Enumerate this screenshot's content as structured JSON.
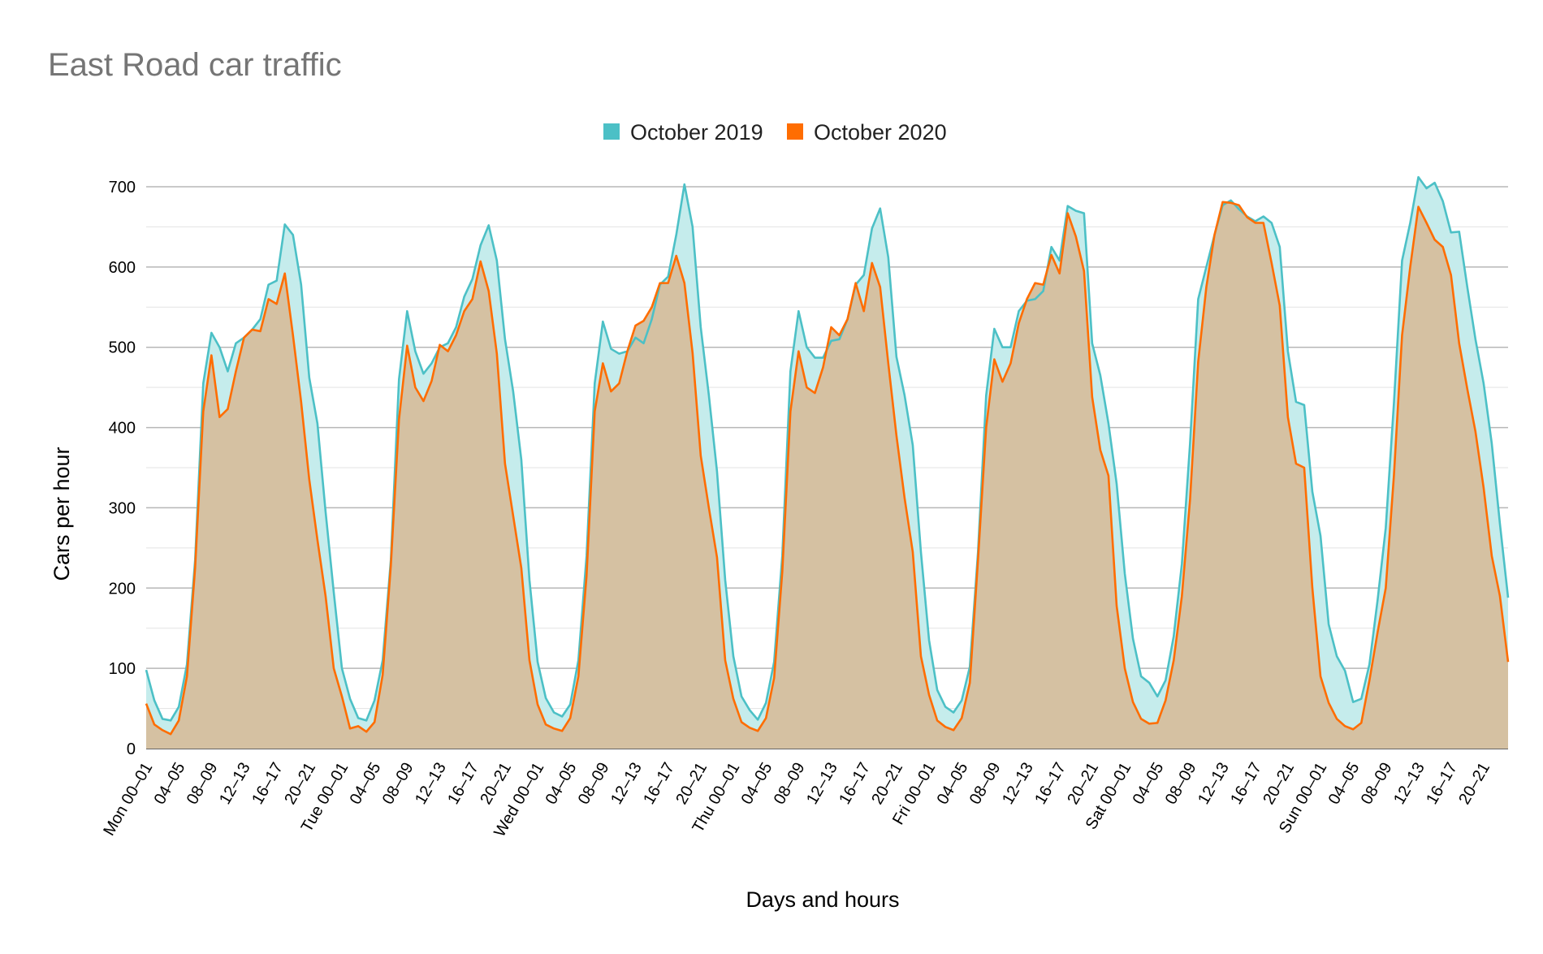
{
  "chart_data": {
    "type": "area",
    "title": "East Road car traffic",
    "xlabel": "Days and hours",
    "ylabel": "Cars per hour",
    "ylim": [
      0,
      700
    ],
    "y_ticks": [
      0,
      100,
      200,
      300,
      400,
      500,
      600,
      700
    ],
    "grid": true,
    "legend_position": "top",
    "x_tick_labels": [
      "Mon 00–01",
      "04–05",
      "08–09",
      "12–13",
      "16–17",
      "20–21",
      "Tue 00–01",
      "04–05",
      "08–09",
      "12–13",
      "16–17",
      "20–21",
      "Wed 00–01",
      "04–05",
      "08–09",
      "12–13",
      "16–17",
      "20–21",
      "Thu 00–01",
      "04–05",
      "08–09",
      "12–13",
      "16–17",
      "20–21",
      "Fri 00–01",
      "04–05",
      "08–09",
      "12–13",
      "16–17",
      "20–21",
      "Sat 00–01",
      "04–05",
      "08–09",
      "12–13",
      "16–17",
      "20–21",
      "Sun 00–01",
      "04–05",
      "08–09",
      "12–13",
      "16–17",
      "20–21"
    ],
    "series": [
      {
        "name": "October 2019",
        "color": "#4cc0c6",
        "fill": "#c5ecec",
        "values": [
          98,
          60,
          37,
          35,
          52,
          105,
          235,
          455,
          518,
          500,
          470,
          505,
          512,
          522,
          535,
          578,
          583,
          653,
          640,
          578,
          462,
          405,
          295,
          195,
          100,
          62,
          38,
          35,
          60,
          110,
          235,
          460,
          545,
          495,
          467,
          480,
          500,
          505,
          525,
          563,
          585,
          627,
          652,
          608,
          510,
          445,
          360,
          210,
          108,
          63,
          45,
          40,
          55,
          110,
          240,
          455,
          532,
          498,
          492,
          495,
          512,
          505,
          535,
          578,
          588,
          640,
          703,
          650,
          525,
          440,
          345,
          210,
          115,
          65,
          48,
          36,
          57,
          108,
          240,
          470,
          545,
          500,
          487,
          487,
          508,
          510,
          535,
          578,
          590,
          648,
          673,
          612,
          488,
          440,
          378,
          245,
          135,
          73,
          52,
          45,
          60,
          102,
          245,
          440,
          523,
          500,
          500,
          545,
          558,
          560,
          570,
          625,
          608,
          676,
          670,
          667,
          505,
          465,
          405,
          330,
          218,
          137,
          90,
          82,
          65,
          85,
          140,
          230,
          380,
          560,
          600,
          640,
          677,
          683,
          672,
          663,
          657,
          663,
          655,
          625,
          495,
          432,
          428,
          320,
          265,
          155,
          115,
          97,
          58,
          62,
          105,
          185,
          275,
          430,
          608,
          655,
          712,
          698,
          705,
          682,
          643,
          644,
          575,
          510,
          455,
          380,
          280,
          188
        ]
      },
      {
        "name": "October 2020",
        "color": "#ff6d01",
        "fill": "#d5c1a2",
        "values": [
          56,
          30,
          23,
          18,
          35,
          90,
          225,
          420,
          490,
          413,
          423,
          470,
          512,
          522,
          520,
          560,
          554,
          592,
          515,
          432,
          335,
          260,
          190,
          100,
          65,
          25,
          28,
          21,
          33,
          92,
          228,
          410,
          502,
          450,
          433,
          458,
          503,
          495,
          515,
          545,
          560,
          607,
          570,
          492,
          355,
          290,
          225,
          110,
          55,
          30,
          25,
          22,
          38,
          90,
          215,
          420,
          480,
          445,
          455,
          495,
          527,
          533,
          550,
          580,
          580,
          614,
          580,
          493,
          365,
          300,
          238,
          110,
          62,
          33,
          26,
          22,
          38,
          88,
          220,
          420,
          495,
          450,
          443,
          475,
          525,
          515,
          535,
          580,
          545,
          605,
          575,
          480,
          390,
          312,
          245,
          115,
          67,
          35,
          27,
          23,
          38,
          82,
          235,
          400,
          485,
          457,
          480,
          530,
          560,
          580,
          578,
          615,
          592,
          667,
          638,
          595,
          438,
          372,
          340,
          178,
          100,
          58,
          37,
          31,
          32,
          60,
          110,
          190,
          310,
          482,
          575,
          640,
          681,
          680,
          677,
          662,
          655,
          655,
          605,
          552,
          413,
          355,
          350,
          200,
          90,
          57,
          37,
          28,
          24,
          32,
          85,
          145,
          200,
          340,
          515,
          600,
          675,
          655,
          634,
          625,
          590,
          505,
          448,
          395,
          325,
          240,
          190,
          108
        ]
      }
    ]
  }
}
